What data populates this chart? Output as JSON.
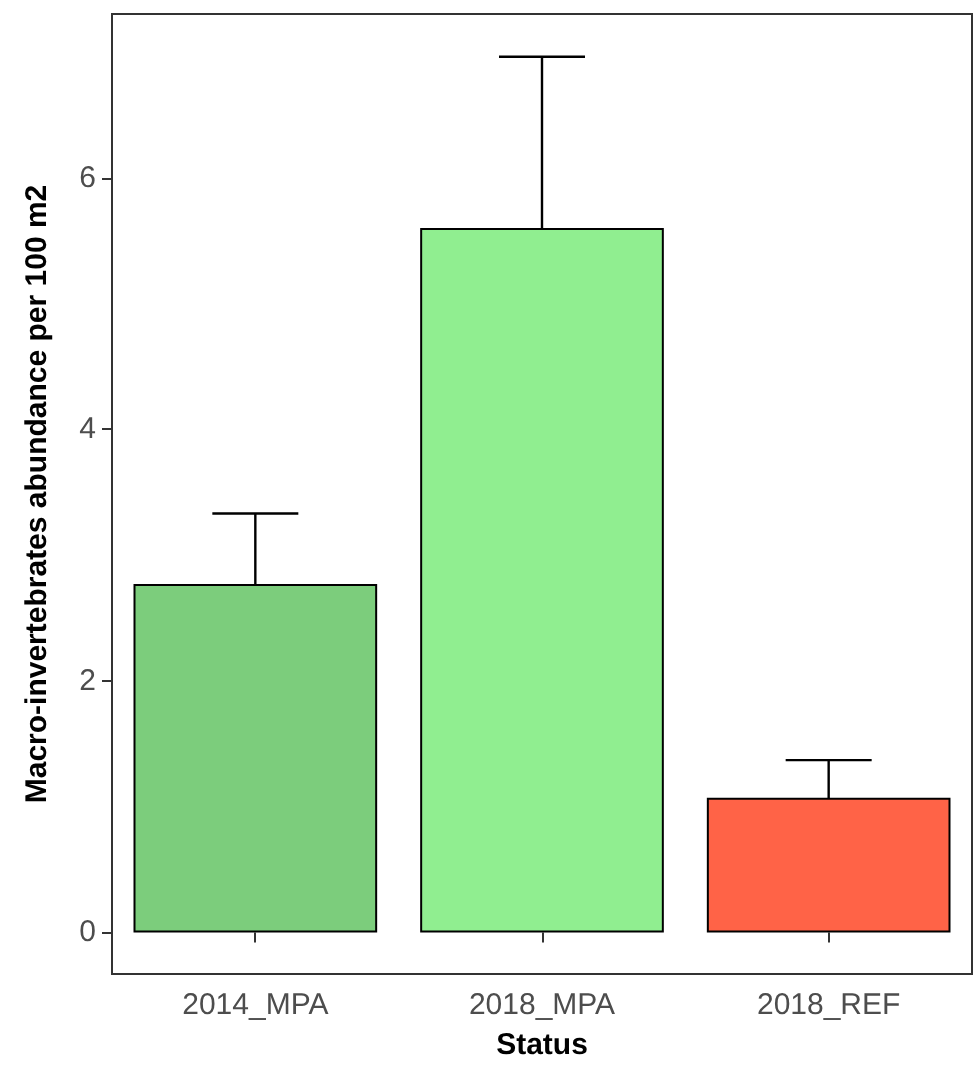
{
  "chart_data": {
    "type": "bar",
    "xlabel": "Status",
    "ylabel": "Macro-invertebrates abundance per 100 m2",
    "categories": [
      "2014_MPA",
      "2018_MPA",
      "2018_REF"
    ],
    "values": [
      2.77,
      5.6,
      1.07
    ],
    "colors": [
      "#7ccd7c",
      "#90ee90",
      "#ff6347"
    ],
    "errors": [
      0.56,
      1.36,
      0.3
    ],
    "ylim": [
      -0.33,
      7.3
    ],
    "yticks": [
      0,
      2,
      4,
      6
    ],
    "grid": false
  }
}
